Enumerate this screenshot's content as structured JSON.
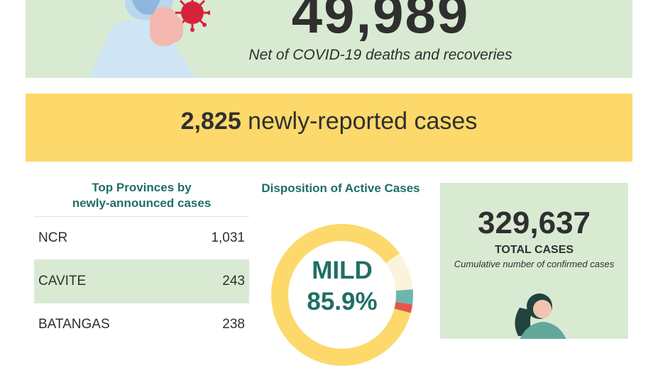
{
  "active": {
    "number": "49,989",
    "caption": "Net of COVID-19 deaths and recoveries"
  },
  "new_cases": {
    "number": "2,825",
    "text": " newly-reported cases"
  },
  "top_provinces": {
    "title_line1": "Top Provinces by",
    "title_line2": "newly-announced cases",
    "rows": [
      {
        "name": "NCR",
        "value": "1,031"
      },
      {
        "name": "CAVITE",
        "value": "243"
      },
      {
        "name": "BATANGAS",
        "value": "238"
      }
    ]
  },
  "disposition": {
    "title": "Disposition of Active Cases",
    "label": "MILD",
    "percent": "85.9%",
    "mild_share": 0.859,
    "colors": {
      "mild": "#fcd96a",
      "other": "#fbf3dc",
      "severe": "#e2574c",
      "critical": "#6db6b0"
    }
  },
  "totals": {
    "number": "329,637",
    "label": "TOTAL CASES",
    "caption": "Cumulative number of confirmed cases"
  }
}
